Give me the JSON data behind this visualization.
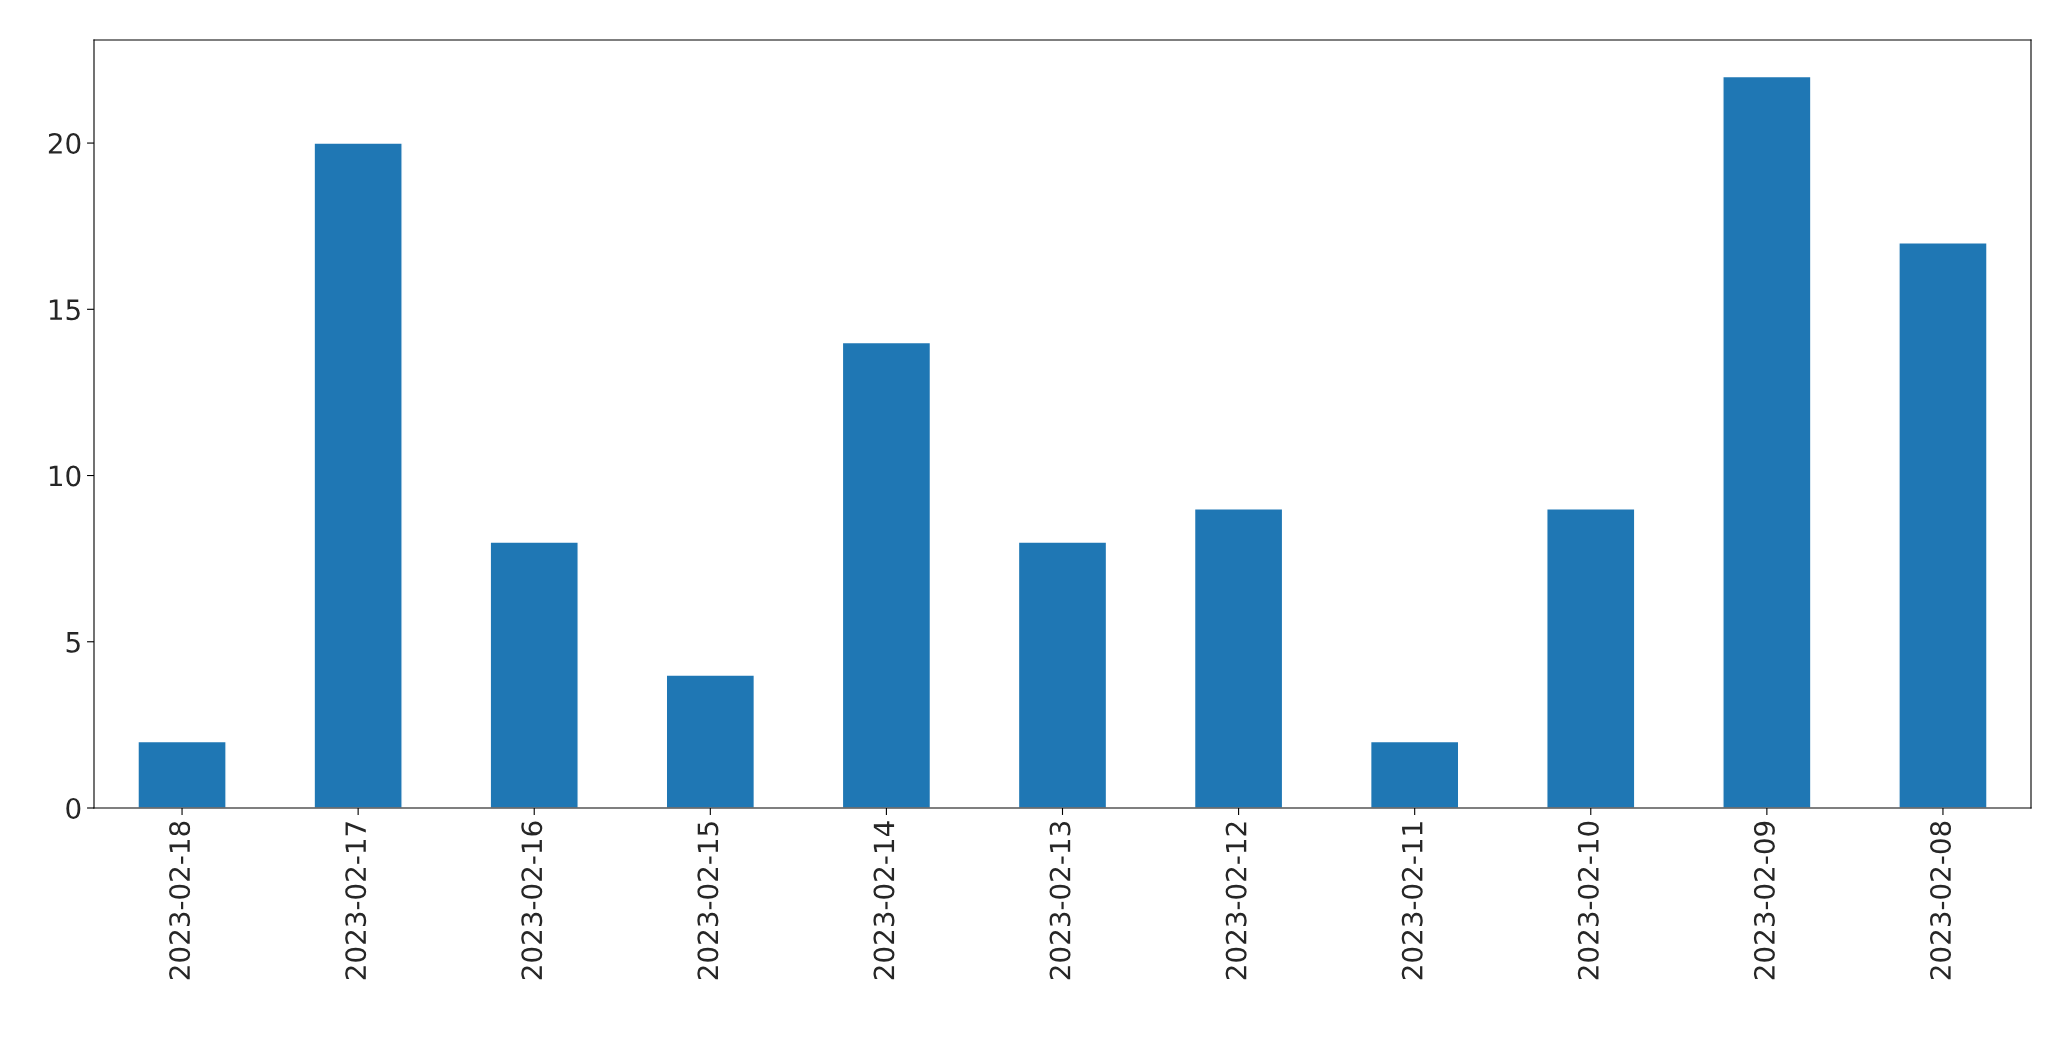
{
  "chart_data": {
    "type": "bar",
    "categories": [
      "2023-02-18",
      "2023-02-17",
      "2023-02-16",
      "2023-02-15",
      "2023-02-14",
      "2023-02-13",
      "2023-02-12",
      "2023-02-11",
      "2023-02-10",
      "2023-02-09",
      "2023-02-08"
    ],
    "values": [
      2,
      20,
      8,
      4,
      14,
      8,
      9,
      2,
      9,
      22,
      17
    ],
    "color": "#1f77b4",
    "ylim": [
      0,
      23.1
    ],
    "yticks": [
      0,
      5,
      10,
      15,
      20
    ],
    "grid": false,
    "legend": false
  }
}
